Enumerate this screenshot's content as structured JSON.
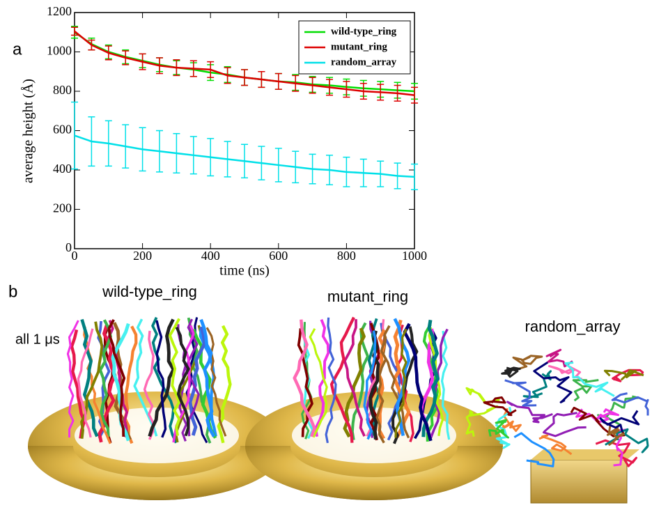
{
  "chart_data": {
    "type": "line",
    "xlabel": "time (ns)",
    "ylabel": "average height (Å)",
    "x": [
      0,
      50,
      100,
      150,
      200,
      250,
      300,
      350,
      400,
      450,
      500,
      550,
      600,
      650,
      700,
      750,
      800,
      850,
      900,
      950,
      1000
    ],
    "series": [
      {
        "name": "wild-type_ring",
        "color": "#00dd00",
        "values": [
          1100,
          1040,
          1000,
          975,
          955,
          935,
          920,
          910,
          895,
          885,
          870,
          860,
          850,
          845,
          835,
          830,
          822,
          815,
          810,
          805,
          800
        ],
        "errors": [
          30,
          30,
          35,
          35,
          35,
          35,
          35,
          35,
          40,
          40,
          40,
          40,
          40,
          40,
          40,
          40,
          40,
          40,
          40,
          40,
          40
        ]
      },
      {
        "name": "mutant_ring",
        "color": "#dd0000",
        "values": [
          1105,
          1035,
          995,
          970,
          950,
          930,
          920,
          915,
          910,
          880,
          870,
          860,
          850,
          840,
          830,
          820,
          810,
          800,
          795,
          790,
          780
        ],
        "errors": [
          20,
          25,
          35,
          35,
          40,
          40,
          40,
          40,
          40,
          40,
          40,
          40,
          40,
          40,
          40,
          40,
          40,
          40,
          40,
          40,
          40
        ]
      },
      {
        "name": "random_array",
        "color": "#00e0e8",
        "values": [
          575,
          545,
          535,
          520,
          505,
          495,
          485,
          475,
          465,
          455,
          445,
          435,
          425,
          415,
          405,
          400,
          390,
          385,
          380,
          370,
          365
        ],
        "errors": [
          170,
          125,
          115,
          110,
          110,
          105,
          100,
          95,
          95,
          90,
          85,
          85,
          85,
          80,
          75,
          75,
          75,
          70,
          65,
          65,
          65
        ]
      }
    ],
    "xlim": [
      0,
      1000
    ],
    "xticks": [
      0,
      200,
      400,
      600,
      800,
      1000
    ],
    "ylim": [
      0,
      1200
    ],
    "yticks": [
      0,
      200,
      400,
      600,
      800,
      1000,
      1200
    ],
    "legend": "upper right"
  },
  "figure": {
    "panel_a": "a",
    "panel_b": "b",
    "note": "all 1 μs",
    "structures": [
      "wild-type_ring",
      "mutant_ring",
      "random_array"
    ]
  }
}
